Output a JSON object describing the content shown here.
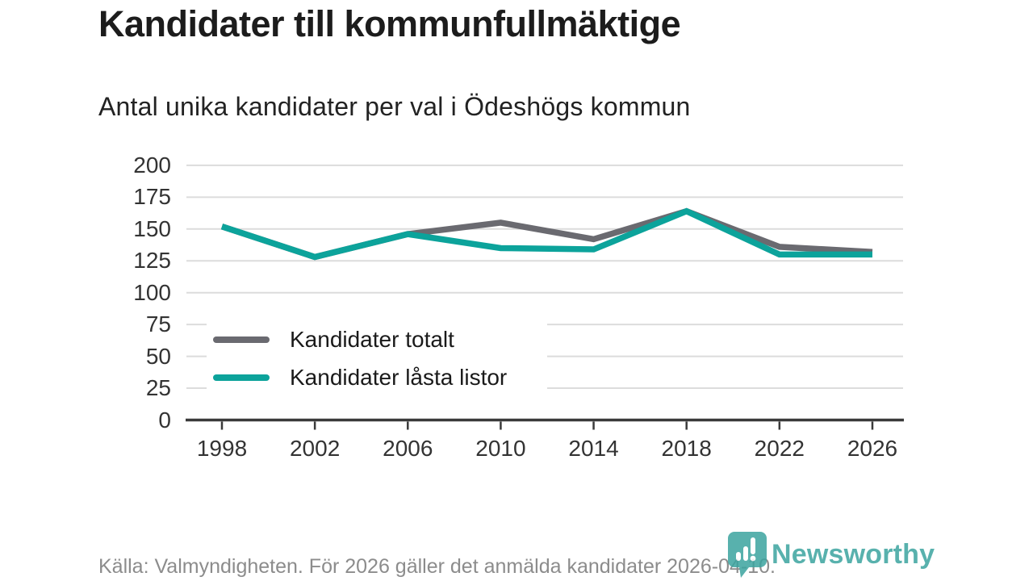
{
  "title": "Kandidater till kommunfullmäktige",
  "subtitle": "Antal unika kandidater per val i Ödeshögs kommun",
  "footer": {
    "source_text": "Källa: Valmyndigheten. För 2026 gäller det anmälda kandidater 2026-04-10."
  },
  "logo": {
    "name": "Newsworthy",
    "color": "#3ba49f"
  },
  "colors": {
    "total_line": "#6a6a70",
    "locked_line": "#0ca39b",
    "gridline": "#dcdcdc",
    "axis": "#3a3a3a",
    "tick_text": "#333333"
  },
  "chart_data": {
    "type": "line",
    "title": "Kandidater till kommunfullmäktige",
    "subtitle": "Antal unika kandidater per val i Ödeshögs kommun",
    "categories": [
      "1998",
      "2002",
      "2006",
      "2010",
      "2014",
      "2018",
      "2022",
      "2026"
    ],
    "series": [
      {
        "name": "Kandidater totalt",
        "color": "#6a6a70",
        "values": [
          152,
          128,
          146,
          155,
          142,
          164,
          136,
          132
        ]
      },
      {
        "name": "Kandidater låsta listor",
        "color": "#0ca39b",
        "values": [
          152,
          128,
          146,
          135,
          134,
          164,
          130,
          130
        ]
      }
    ],
    "xlabel": "",
    "ylabel": "",
    "ylim": [
      0,
      200
    ],
    "yticks": [
      0,
      25,
      50,
      75,
      100,
      125,
      150,
      175,
      200
    ],
    "grid": "horizontal",
    "legend_position": "inside-bottom-left"
  }
}
